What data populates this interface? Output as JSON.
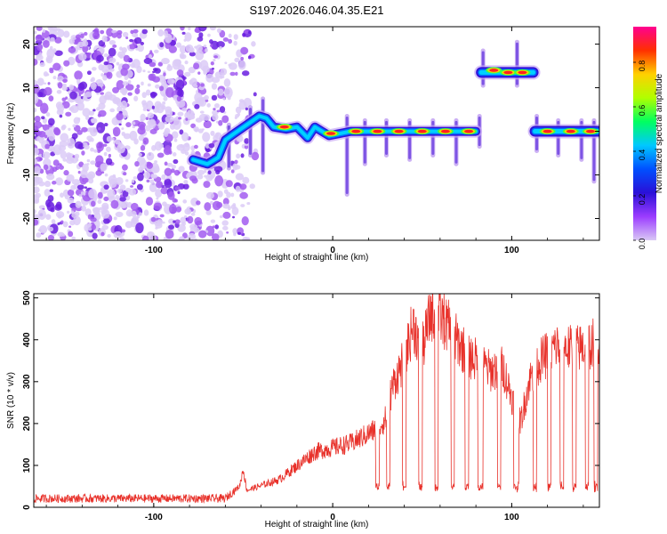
{
  "chart_data": [
    {
      "type": "heatmap",
      "title": "S197.2026.046.04.35.E21",
      "xlabel": "Height of straight line (km)",
      "ylabel": "Frequency (Hz)",
      "xlim": [
        -167,
        149
      ],
      "ylim": [
        -25,
        24
      ],
      "x_ticks": [
        -100,
        0,
        100
      ],
      "y_ticks": [
        20,
        10,
        0,
        -10,
        -20
      ],
      "colorbar": {
        "label": "Normalized spectral amplitude",
        "range": [
          0,
          0.96
        ],
        "ticks": [
          "0.0",
          "0.2",
          "0.4",
          "0.6",
          "0.8"
        ],
        "colors": [
          "#d9c8f5",
          "#9b3cff",
          "#2a10d8",
          "#0050ff",
          "#00c8ff",
          "#00ff60",
          "#b0ff00",
          "#ffd000",
          "#ff3000",
          "#ff0090"
        ]
      },
      "noise_region": {
        "x_range": [
          -167,
          -65
        ],
        "density_fade_to": -40
      },
      "track": [
        {
          "x": -78,
          "f": -6.5
        },
        {
          "x": -70,
          "f": -7.5
        },
        {
          "x": -64,
          "f": -6
        },
        {
          "x": -60,
          "f": -2
        },
        {
          "x": -55,
          "f": -0.5
        },
        {
          "x": -48,
          "f": 1.5
        },
        {
          "x": -41,
          "f": 3.5
        },
        {
          "x": -37,
          "f": 3
        },
        {
          "x": -33,
          "f": 1
        },
        {
          "x": -26,
          "f": 0.5
        },
        {
          "x": -20,
          "f": 1
        },
        {
          "x": -14,
          "f": -1.5
        },
        {
          "x": -10,
          "f": 1
        },
        {
          "x": -6,
          "f": 0
        },
        {
          "x": -2,
          "f": -1
        },
        {
          "x": 4,
          "f": -0.5
        },
        {
          "x": 10,
          "f": 0
        },
        {
          "x": 80,
          "f": 0
        }
      ],
      "high_band": {
        "x_range": [
          83,
          112
        ],
        "f": 13.5
      },
      "right_band": {
        "x_range": [
          113,
          148
        ],
        "f": 0
      },
      "hot_spots": [
        {
          "x": -27,
          "f": 1
        },
        {
          "x": -1,
          "f": -0.5
        },
        {
          "x": 13,
          "f": 0
        },
        {
          "x": 25,
          "f": 0
        },
        {
          "x": 37,
          "f": 0
        },
        {
          "x": 50,
          "f": 0
        },
        {
          "x": 63,
          "f": 0
        },
        {
          "x": 76,
          "f": 0
        },
        {
          "x": 90,
          "f": 14
        },
        {
          "x": 98,
          "f": 13.5
        },
        {
          "x": 106,
          "f": 13.5
        },
        {
          "x": 120,
          "f": 0
        },
        {
          "x": 133,
          "f": 0
        },
        {
          "x": 144,
          "f": 0
        }
      ],
      "vertical_streaks": [
        {
          "x": -58,
          "f_min": -9,
          "f_max": 2
        },
        {
          "x": -46,
          "f_min": -6,
          "f_max": 6
        },
        {
          "x": -39,
          "f_min": -10,
          "f_max": 8
        },
        {
          "x": 8,
          "f_min": -15,
          "f_max": 4
        },
        {
          "x": 18,
          "f_min": -8,
          "f_max": 3
        },
        {
          "x": 30,
          "f_min": -6,
          "f_max": 3
        },
        {
          "x": 43,
          "f_min": -7,
          "f_max": 3
        },
        {
          "x": 56,
          "f_min": -6,
          "f_max": 3
        },
        {
          "x": 69,
          "f_min": -8,
          "f_max": 3
        },
        {
          "x": 82,
          "f_min": -4,
          "f_max": 4
        },
        {
          "x": 84,
          "f_min": 10,
          "f_max": 19
        },
        {
          "x": 103,
          "f_min": 10,
          "f_max": 21
        },
        {
          "x": 114,
          "f_min": -5,
          "f_max": 4
        },
        {
          "x": 126,
          "f_min": -6,
          "f_max": 3
        },
        {
          "x": 139,
          "f_min": -7,
          "f_max": 3
        },
        {
          "x": 146,
          "f_min": -12,
          "f_max": 3
        }
      ]
    },
    {
      "type": "line",
      "xlabel": "Height of straight line (km)",
      "ylabel": "SNR (10 * v/v)",
      "xlim": [
        -167,
        149
      ],
      "ylim": [
        0,
        510
      ],
      "x_ticks": [
        -100,
        0,
        100
      ],
      "y_ticks": [
        0,
        100,
        200,
        300,
        400,
        500
      ],
      "color": "#e8312a",
      "anchors": [
        {
          "x": -167,
          "snr": 20
        },
        {
          "x": -60,
          "snr": 20
        },
        {
          "x": -52,
          "snr": 50
        },
        {
          "x": -50,
          "snr": 90
        },
        {
          "x": -48,
          "snr": 40
        },
        {
          "x": -30,
          "snr": 65
        },
        {
          "x": -10,
          "snr": 130
        },
        {
          "x": 10,
          "snr": 150
        },
        {
          "x": 25,
          "snr": 185
        },
        {
          "x": 30,
          "snr": 210
        },
        {
          "x": 33,
          "snr": 280
        },
        {
          "x": 40,
          "snr": 350
        },
        {
          "x": 45,
          "snr": 430
        },
        {
          "x": 50,
          "snr": 370
        },
        {
          "x": 55,
          "snr": 460
        },
        {
          "x": 62,
          "snr": 440
        },
        {
          "x": 68,
          "snr": 400
        },
        {
          "x": 75,
          "snr": 360
        },
        {
          "x": 82,
          "snr": 340
        },
        {
          "x": 88,
          "snr": 320
        },
        {
          "x": 95,
          "snr": 330
        },
        {
          "x": 100,
          "snr": 260
        },
        {
          "x": 105,
          "snr": 200
        },
        {
          "x": 110,
          "snr": 300
        },
        {
          "x": 115,
          "snr": 340
        },
        {
          "x": 125,
          "snr": 380
        },
        {
          "x": 135,
          "snr": 370
        },
        {
          "x": 149,
          "snr": 390
        }
      ],
      "dropouts": [
        {
          "x0": 24,
          "x1": 26
        },
        {
          "x0": 30,
          "x1": 32
        },
        {
          "x0": 39,
          "x1": 41
        },
        {
          "x0": 48,
          "x1": 50
        },
        {
          "x0": 57,
          "x1": 59
        },
        {
          "x0": 66,
          "x1": 68
        },
        {
          "x0": 74,
          "x1": 76
        },
        {
          "x0": 81,
          "x1": 84
        },
        {
          "x0": 92,
          "x1": 94
        },
        {
          "x0": 101,
          "x1": 104
        },
        {
          "x0": 112,
          "x1": 114
        },
        {
          "x0": 120,
          "x1": 122
        },
        {
          "x0": 127,
          "x1": 129
        },
        {
          "x0": 134,
          "x1": 136
        },
        {
          "x0": 141,
          "x1": 143
        },
        {
          "x0": 146,
          "x1": 148
        }
      ],
      "dropout_level": 40
    }
  ]
}
